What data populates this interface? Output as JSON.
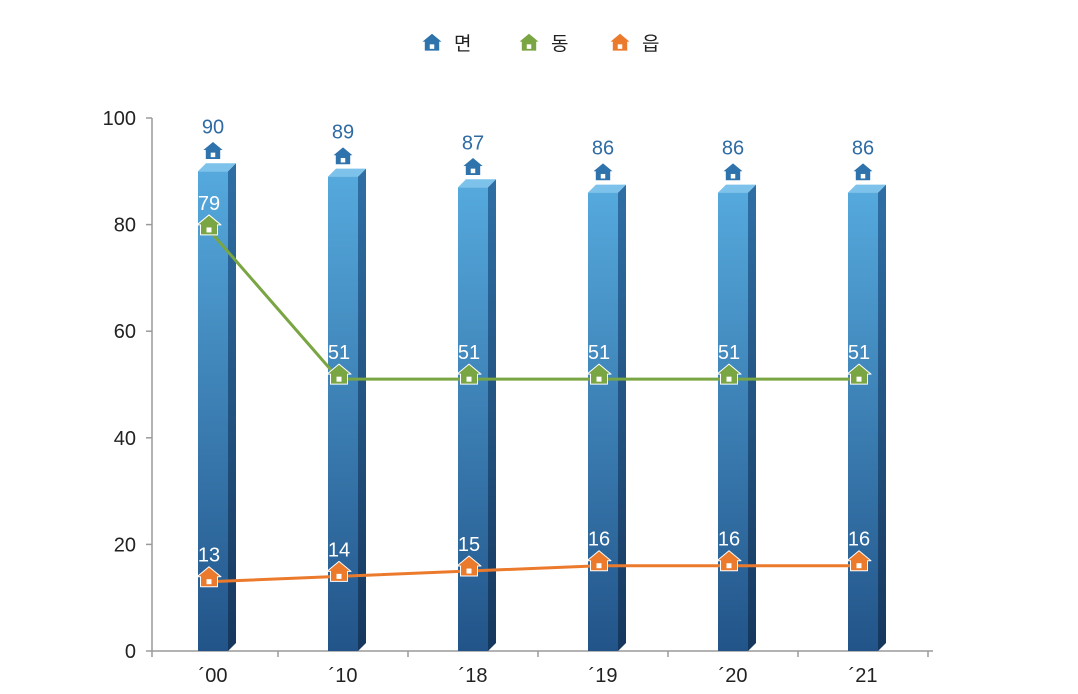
{
  "chart_data": {
    "type": "bar",
    "categories": [
      "´00",
      "´10",
      "´18",
      "´19",
      "´20",
      "´21"
    ],
    "ylim": [
      0,
      100
    ],
    "yticks": [
      0,
      20,
      40,
      60,
      80,
      100
    ],
    "legend_position": "top-center",
    "grid": false,
    "series": [
      {
        "name": "면",
        "kind": "bar",
        "color": "#2f73ad",
        "values": [
          90,
          89,
          87,
          86,
          86,
          86
        ]
      },
      {
        "name": "동",
        "kind": "line",
        "color": "#79a542",
        "values": [
          79,
          51,
          51,
          51,
          51,
          51
        ]
      },
      {
        "name": "읍",
        "kind": "line",
        "color": "#ec7a2d",
        "values": [
          13,
          14,
          15,
          16,
          16,
          16
        ]
      }
    ]
  }
}
